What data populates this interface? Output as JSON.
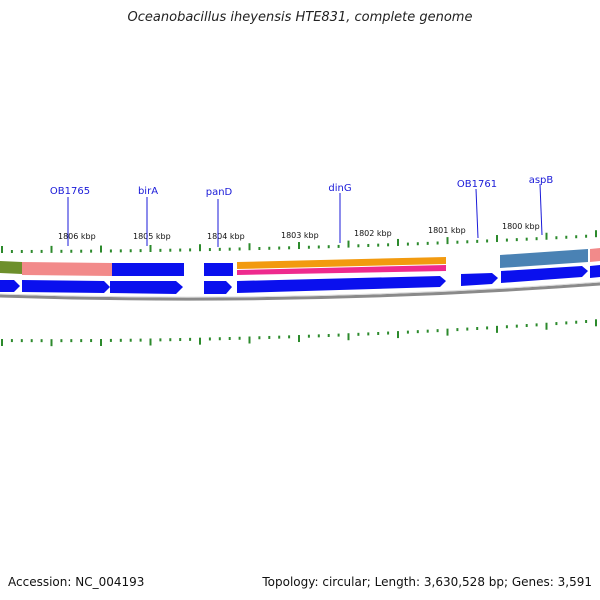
{
  "title": "Oceanobacillus iheyensis HTE831, complete genome",
  "accession": "Accession: NC_004193",
  "summary": "Topology: circular; Length: 3,630,528 bp; Genes: 3,591",
  "colors": {
    "gene_blue": "#0a10ee",
    "olive": "#6d8f2b",
    "salmon": "#f28a8a",
    "orange": "#f29a0f",
    "magenta": "#ee2a8e",
    "steelblue": "#4a82b4",
    "tick_green": "#2c8a2c",
    "backbone_gray": "#8a8a8a",
    "label_blue": "#1a1ad8"
  },
  "gene_labels": [
    "OB1765",
    "birA",
    "panD",
    "dinG",
    "OB1761",
    "aspB"
  ],
  "kbp_labels": [
    "1806 kbp",
    "1805 kbp",
    "1804 kbp",
    "1803 kbp",
    "1802 kbp",
    "1801 kbp",
    "1800 kbp"
  ]
}
